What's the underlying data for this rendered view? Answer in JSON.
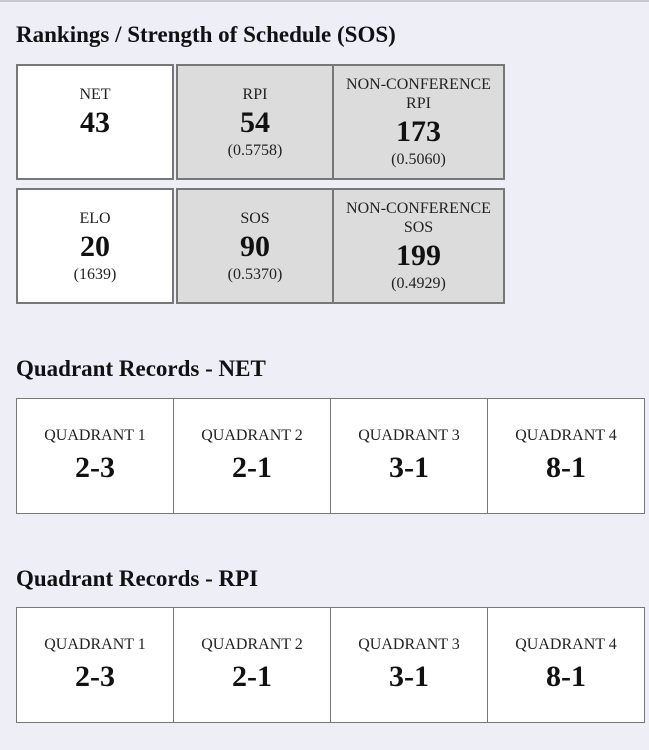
{
  "rankings": {
    "title": "Rankings / Strength of Schedule (SOS)",
    "cells": [
      {
        "label": "NET",
        "value": "43",
        "sub": ""
      },
      {
        "label": "RPI",
        "value": "54",
        "sub": "(0.5758)"
      },
      {
        "label": "NON-CONFERENCE RPI",
        "value": "173",
        "sub": "(0.5060)"
      },
      {
        "label": "ELO",
        "value": "20",
        "sub": "(1639)"
      },
      {
        "label": "SOS",
        "value": "90",
        "sub": "(0.5370)"
      },
      {
        "label": "NON-CONFERENCE SOS",
        "value": "199",
        "sub": "(0.4929)"
      }
    ]
  },
  "quad_net": {
    "title": "Quadrant Records - NET",
    "cells": [
      {
        "label": "QUADRANT 1",
        "value": "2-3"
      },
      {
        "label": "QUADRANT 2",
        "value": "2-1"
      },
      {
        "label": "QUADRANT 3",
        "value": "3-1"
      },
      {
        "label": "QUADRANT 4",
        "value": "8-1"
      }
    ]
  },
  "quad_rpi": {
    "title": "Quadrant Records - RPI",
    "cells": [
      {
        "label": "QUADRANT 1",
        "value": "2-3"
      },
      {
        "label": "QUADRANT 2",
        "value": "2-1"
      },
      {
        "label": "QUADRANT 3",
        "value": "3-1"
      },
      {
        "label": "QUADRANT 4",
        "value": "8-1"
      }
    ]
  }
}
